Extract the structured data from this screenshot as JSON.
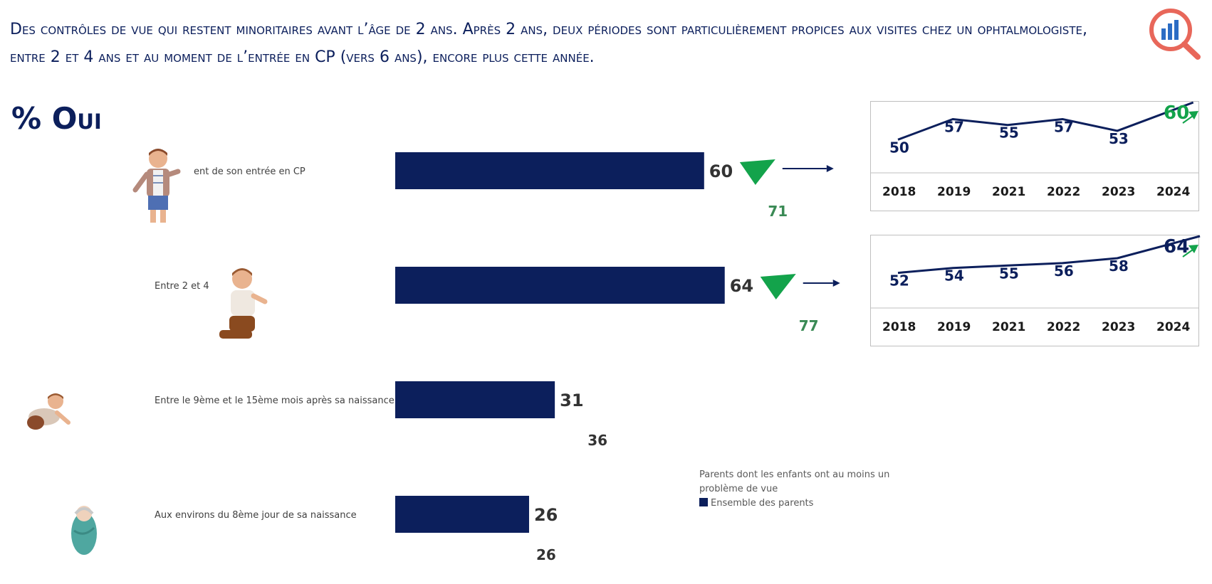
{
  "header": {
    "title": "Des contrôles de vue qui restent minoritaires avant l’âge de 2 ans. Après 2 ans, deux périodes sont particulièrement propices aux visites chez un ophtalmologiste, entre 2 et 4 ans et au moment de l’entrée en CP (vers 6 ans), encore plus cette année.",
    "logo_icon": "magnifier-chart-icon"
  },
  "yes_label": "% Oui",
  "legend": {
    "subgroup": "Parents dont les enfants ont au moins un problème de vue",
    "all": "Ensemble des parents"
  },
  "colors": {
    "bar": "#0c1f5c",
    "subgroup_text": "#3a8a55",
    "trend_up": "#13a34b",
    "line": "#0c1f5c"
  },
  "chart_data": [
    {
      "type": "bar",
      "orientation": "horizontal",
      "categories": [
        "ent de son entrée en CP",
        "Entre 2 et 4",
        "Entre le 9ème et le 15ème mois après sa naissance",
        "Aux environs du 8ème jour de sa naissance"
      ],
      "series": [
        {
          "name": "Ensemble des parents",
          "values": [
            60,
            64,
            31,
            26
          ]
        },
        {
          "name": "Parents dont les enfants ont au moins un problème de vue",
          "values": [
            71,
            77,
            36,
            26
          ]
        }
      ],
      "trend_up_flags": [
        true,
        true,
        false,
        false
      ],
      "xlim": [
        0,
        100
      ],
      "title": "% Oui"
    },
    {
      "type": "line",
      "x": [
        "2018",
        "2019",
        "2021",
        "2022",
        "2023",
        "2024"
      ],
      "values": [
        50,
        57,
        55,
        57,
        53,
        60
      ],
      "highlight_last": true,
      "trend": "up"
    },
    {
      "type": "line",
      "x": [
        "2018",
        "2019",
        "2021",
        "2022",
        "2023",
        "2024"
      ],
      "values": [
        52,
        54,
        55,
        56,
        58,
        64
      ],
      "highlight_last": true,
      "trend": "up"
    }
  ]
}
